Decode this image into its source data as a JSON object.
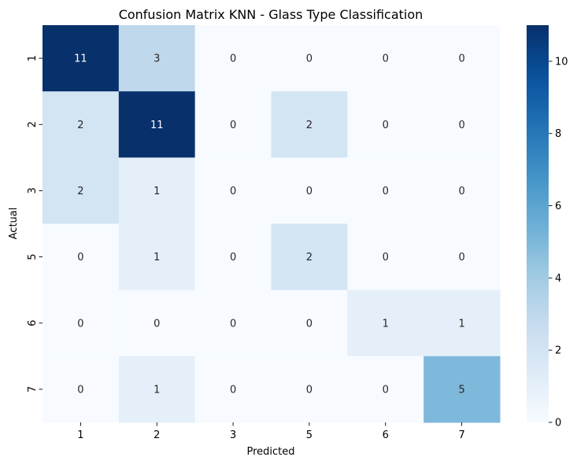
{
  "chart_data": {
    "type": "heatmap",
    "title": "Confusion Matrix KNN - Glass Type Classification",
    "xlabel": "Predicted",
    "ylabel": "Actual",
    "x_categories": [
      "1",
      "2",
      "3",
      "5",
      "6",
      "7"
    ],
    "y_categories": [
      "1",
      "2",
      "3",
      "5",
      "6",
      "7"
    ],
    "values": [
      [
        11,
        3,
        0,
        0,
        0,
        0
      ],
      [
        2,
        11,
        0,
        2,
        0,
        0
      ],
      [
        2,
        1,
        0,
        0,
        0,
        0
      ],
      [
        0,
        1,
        0,
        2,
        0,
        0
      ],
      [
        0,
        0,
        0,
        0,
        1,
        1
      ],
      [
        0,
        1,
        0,
        0,
        0,
        5
      ]
    ],
    "colormap": "Blues",
    "vmin": 0,
    "vmax": 11,
    "colorbar_ticks": [
      "0",
      "2",
      "4",
      "6",
      "8",
      "10"
    ],
    "annotations": true
  }
}
